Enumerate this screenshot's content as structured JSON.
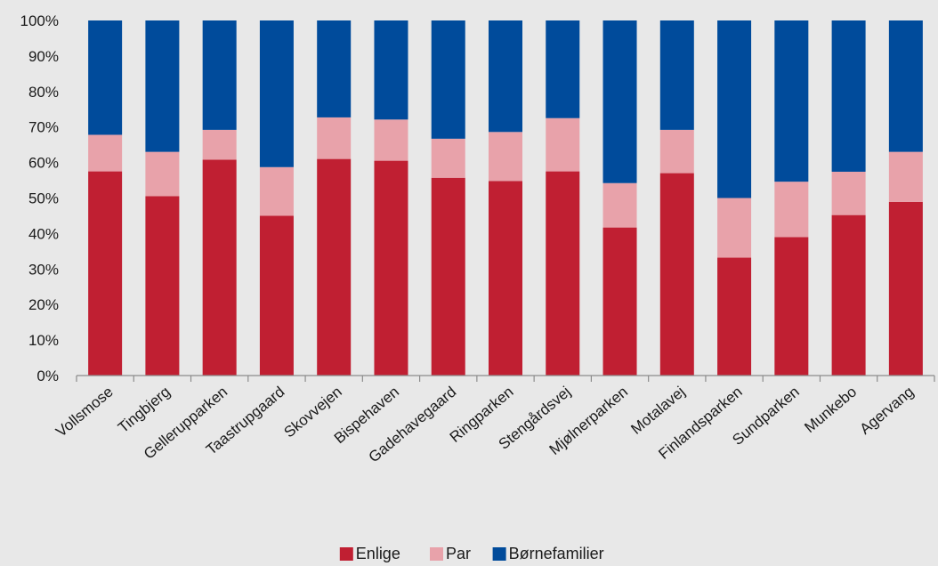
{
  "chart_data": {
    "type": "bar",
    "stacked": true,
    "percent": true,
    "categories": [
      "Vollsmose",
      "Tingbjerg",
      "Gellerupparken",
      "Taastrupgaard",
      "Skovvejen",
      "Bispehaven",
      "Gadehavegaard",
      "Ringparken",
      "Stengårdsvej",
      "Mjølnerparken",
      "Motalavej",
      "Finlandsparken",
      "Sundparken",
      "Munkebo",
      "Agervang"
    ],
    "series": [
      {
        "name": "Enlige",
        "color": "#c01f32",
        "values": [
          57.5,
          50.5,
          60.8,
          45.0,
          61.0,
          60.5,
          55.7,
          54.8,
          57.5,
          41.7,
          57.0,
          33.2,
          39.0,
          45.2,
          48.9
        ]
      },
      {
        "name": "Par",
        "color": "#e8a2aa",
        "values": [
          10.3,
          12.5,
          8.4,
          13.7,
          11.7,
          11.6,
          11.0,
          13.8,
          15.0,
          12.5,
          12.2,
          16.8,
          15.6,
          12.2,
          14.1
        ]
      },
      {
        "name": "Børnefamilier",
        "color": "#004b9b",
        "values": [
          32.2,
          37.0,
          30.8,
          41.3,
          27.3,
          27.9,
          33.3,
          31.4,
          27.5,
          45.8,
          30.8,
          50.0,
          45.4,
          42.6,
          37.0
        ]
      }
    ],
    "ylim": [
      0,
      100
    ],
    "yticks": [
      "0%",
      "10%",
      "20%",
      "30%",
      "40%",
      "50%",
      "60%",
      "70%",
      "80%",
      "90%",
      "100%"
    ],
    "grid": false,
    "legend_position": "bottom",
    "title": "",
    "xlabel": "",
    "ylabel": ""
  }
}
